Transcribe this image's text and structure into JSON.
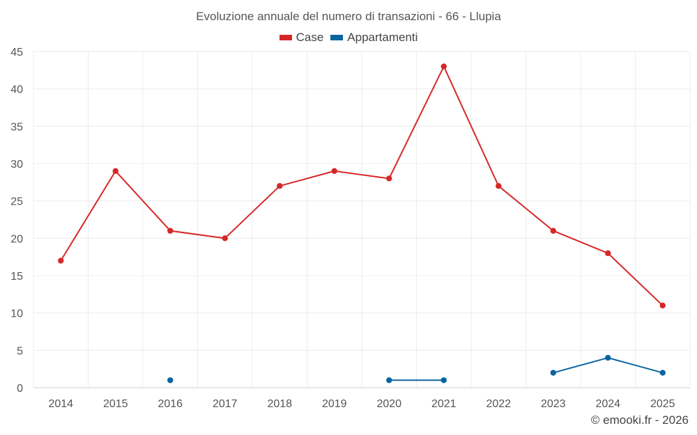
{
  "chart_data": {
    "type": "line",
    "title": "Evoluzione annuale del numero di transazioni - 66 - Llupia",
    "categories": [
      "2014",
      "2015",
      "2016",
      "2017",
      "2018",
      "2019",
      "2020",
      "2021",
      "2022",
      "2023",
      "2024",
      "2025"
    ],
    "series": [
      {
        "name": "Case",
        "color": "#d62728",
        "values": [
          17,
          29,
          21,
          20,
          27,
          29,
          28,
          43,
          27,
          21,
          18,
          11
        ]
      },
      {
        "name": "Appartamenti",
        "color": "#0a64a0",
        "values": [
          null,
          null,
          1,
          null,
          null,
          null,
          1,
          1,
          null,
          2,
          4,
          2
        ]
      }
    ],
    "ylim": [
      0,
      45
    ],
    "yticks": [
      0,
      5,
      10,
      15,
      20,
      25,
      30,
      35,
      40,
      45
    ],
    "xlabel": "",
    "ylabel": "",
    "grid": true,
    "legend_position": "top-center"
  },
  "credit": "© emooki.fr - 2026"
}
